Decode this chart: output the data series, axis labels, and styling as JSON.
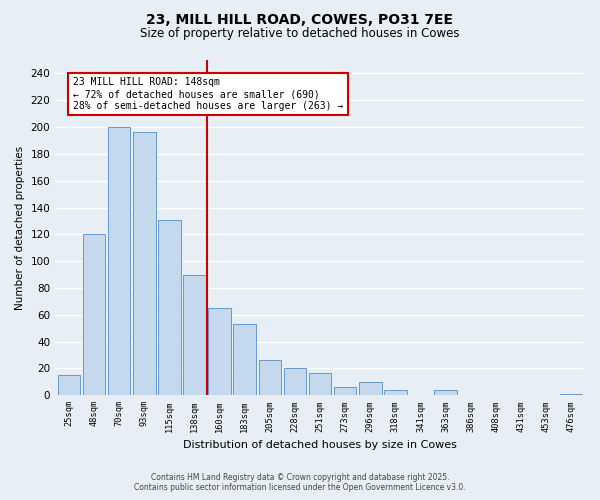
{
  "title": "23, MILL HILL ROAD, COWES, PO31 7EE",
  "subtitle": "Size of property relative to detached houses in Cowes",
  "xlabel": "Distribution of detached houses by size in Cowes",
  "ylabel": "Number of detached properties",
  "bar_labels": [
    "25sqm",
    "48sqm",
    "70sqm",
    "93sqm",
    "115sqm",
    "138sqm",
    "160sqm",
    "183sqm",
    "205sqm",
    "228sqm",
    "251sqm",
    "273sqm",
    "296sqm",
    "318sqm",
    "341sqm",
    "363sqm",
    "386sqm",
    "408sqm",
    "431sqm",
    "453sqm",
    "476sqm"
  ],
  "bar_values": [
    15,
    120,
    200,
    196,
    131,
    90,
    65,
    53,
    26,
    20,
    17,
    6,
    10,
    4,
    0,
    4,
    0,
    0,
    0,
    0,
    1
  ],
  "bar_color": "#c5d9ee",
  "bar_edge_color": "#6699cc",
  "vline_x": 5.5,
  "vline_color": "#cc0000",
  "annotation_title": "23 MILL HILL ROAD: 148sqm",
  "annotation_line1": "← 72% of detached houses are smaller (690)",
  "annotation_line2": "28% of semi-detached houses are larger (263) →",
  "annotation_box_facecolor": "#ffffff",
  "annotation_box_edgecolor": "#cc0000",
  "ylim": [
    0,
    250
  ],
  "yticks": [
    0,
    20,
    40,
    60,
    80,
    100,
    120,
    140,
    160,
    180,
    200,
    220,
    240
  ],
  "footer1": "Contains HM Land Registry data © Crown copyright and database right 2025.",
  "footer2": "Contains public sector information licensed under the Open Government Licence v3.0.",
  "bg_color": "#e8eef5",
  "grid_color": "#ffffff"
}
